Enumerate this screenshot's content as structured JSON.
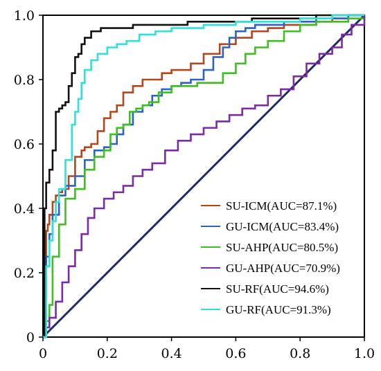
{
  "chart_data": {
    "type": "line",
    "title": "",
    "xlabel": "",
    "ylabel": "",
    "xlim": [
      0,
      1
    ],
    "ylim": [
      0,
      1
    ],
    "x_ticks": [
      0,
      0.2,
      0.4,
      0.6,
      0.8,
      1.0
    ],
    "y_ticks": [
      0,
      0.2,
      0.4,
      0.6,
      0.8,
      1.0
    ],
    "x_tick_labels": [
      "0",
      "0.2",
      "0.4",
      "0.6",
      "0.8",
      "1.0"
    ],
    "y_tick_labels": [
      "0",
      "0.2",
      "0.4",
      "0.6",
      "0.8",
      "1.0"
    ],
    "grid": false,
    "legend_position": "bottom-right",
    "reference_line": {
      "x": [
        0,
        1
      ],
      "y": [
        0,
        1
      ],
      "color": "#1f2a6b"
    },
    "series": [
      {
        "name": "SU-ICM(AUC=87.1%)",
        "color": "#b5451b",
        "x": [
          0,
          0.005,
          0.01,
          0.015,
          0.02,
          0.03,
          0.04,
          0.05,
          0.06,
          0.08,
          0.1,
          0.12,
          0.13,
          0.15,
          0.17,
          0.19,
          0.21,
          0.23,
          0.25,
          0.28,
          0.31,
          0.34,
          0.37,
          0.4,
          0.43,
          0.46,
          0.5,
          0.55,
          0.6,
          0.65,
          0.7,
          0.75,
          0.8,
          0.85,
          0.9,
          0.95,
          1.0
        ],
        "y": [
          0,
          0.15,
          0.33,
          0.35,
          0.38,
          0.42,
          0.44,
          0.45,
          0.46,
          0.5,
          0.56,
          0.58,
          0.59,
          0.6,
          0.64,
          0.68,
          0.7,
          0.72,
          0.76,
          0.78,
          0.8,
          0.8,
          0.82,
          0.83,
          0.83,
          0.85,
          0.88,
          0.91,
          0.93,
          0.95,
          0.96,
          0.97,
          0.97,
          0.98,
          0.99,
          1.0,
          1.0
        ]
      },
      {
        "name": "GU-ICM(AUC=83.4%)",
        "color": "#2a62c9",
        "x": [
          0,
          0.005,
          0.01,
          0.02,
          0.03,
          0.05,
          0.07,
          0.1,
          0.13,
          0.16,
          0.19,
          0.21,
          0.23,
          0.25,
          0.28,
          0.31,
          0.34,
          0.37,
          0.4,
          0.43,
          0.46,
          0.5,
          0.53,
          0.56,
          0.58,
          0.6,
          0.63,
          0.66,
          0.7,
          0.75,
          0.8,
          0.85,
          0.9,
          0.95,
          1.0
        ],
        "y": [
          0,
          0.12,
          0.25,
          0.32,
          0.38,
          0.44,
          0.47,
          0.5,
          0.55,
          0.58,
          0.59,
          0.6,
          0.63,
          0.66,
          0.7,
          0.72,
          0.75,
          0.77,
          0.78,
          0.79,
          0.8,
          0.83,
          0.87,
          0.9,
          0.93,
          0.95,
          0.96,
          0.97,
          0.97,
          0.98,
          0.98,
          0.99,
          0.99,
          1.0,
          1.0
        ]
      },
      {
        "name": "SU-AHP(AUC=80.5%)",
        "color": "#3cbf1f",
        "x": [
          0,
          0.01,
          0.02,
          0.03,
          0.05,
          0.07,
          0.1,
          0.13,
          0.16,
          0.19,
          0.21,
          0.23,
          0.25,
          0.27,
          0.29,
          0.31,
          0.33,
          0.36,
          0.4,
          0.44,
          0.48,
          0.52,
          0.56,
          0.6,
          0.63,
          0.66,
          0.7,
          0.75,
          0.8,
          0.85,
          0.9,
          0.95,
          1.0
        ],
        "y": [
          0,
          0.05,
          0.1,
          0.25,
          0.35,
          0.43,
          0.46,
          0.52,
          0.56,
          0.58,
          0.63,
          0.65,
          0.66,
          0.7,
          0.71,
          0.72,
          0.73,
          0.76,
          0.78,
          0.78,
          0.79,
          0.79,
          0.82,
          0.85,
          0.88,
          0.9,
          0.92,
          0.95,
          0.97,
          0.98,
          0.98,
          0.99,
          1.0
        ]
      },
      {
        "name": "GU-AHP(AUC=70.9%)",
        "color": "#7b2aa8",
        "x": [
          0,
          0.01,
          0.02,
          0.04,
          0.06,
          0.08,
          0.1,
          0.12,
          0.14,
          0.16,
          0.19,
          0.22,
          0.25,
          0.28,
          0.31,
          0.34,
          0.38,
          0.42,
          0.46,
          0.5,
          0.54,
          0.58,
          0.62,
          0.66,
          0.7,
          0.74,
          0.78,
          0.82,
          0.86,
          0.9,
          0.93,
          0.96,
          1.0
        ],
        "y": [
          0,
          0.03,
          0.06,
          0.11,
          0.17,
          0.22,
          0.27,
          0.32,
          0.37,
          0.4,
          0.43,
          0.45,
          0.47,
          0.5,
          0.52,
          0.54,
          0.58,
          0.61,
          0.63,
          0.65,
          0.67,
          0.69,
          0.71,
          0.72,
          0.75,
          0.77,
          0.81,
          0.85,
          0.88,
          0.9,
          0.94,
          0.97,
          1.0
        ]
      },
      {
        "name": "SU-RF(AUC=94.6%)",
        "color": "#111111",
        "x": [
          0,
          0.005,
          0.01,
          0.02,
          0.03,
          0.04,
          0.05,
          0.06,
          0.07,
          0.08,
          0.09,
          0.1,
          0.11,
          0.12,
          0.13,
          0.15,
          0.18,
          0.22,
          0.28,
          0.35,
          0.45,
          0.55,
          0.65,
          0.75,
          0.85,
          0.95,
          1.0
        ],
        "y": [
          0,
          0.4,
          0.48,
          0.52,
          0.58,
          0.7,
          0.71,
          0.72,
          0.73,
          0.78,
          0.82,
          0.87,
          0.88,
          0.91,
          0.93,
          0.95,
          0.96,
          0.96,
          0.97,
          0.97,
          0.98,
          0.98,
          0.99,
          0.99,
          1.0,
          1.0,
          1.0
        ]
      },
      {
        "name": "GU-RF(AUC=91.3%)",
        "color": "#2de2d8",
        "x": [
          0,
          0.01,
          0.02,
          0.03,
          0.04,
          0.05,
          0.07,
          0.09,
          0.1,
          0.11,
          0.12,
          0.13,
          0.15,
          0.17,
          0.2,
          0.23,
          0.26,
          0.3,
          0.35,
          0.4,
          0.5,
          0.6,
          0.7,
          0.8,
          0.9,
          1.0
        ],
        "y": [
          0,
          0.22,
          0.3,
          0.36,
          0.42,
          0.46,
          0.55,
          0.66,
          0.7,
          0.74,
          0.79,
          0.83,
          0.86,
          0.88,
          0.9,
          0.91,
          0.92,
          0.94,
          0.95,
          0.96,
          0.97,
          0.98,
          0.98,
          0.99,
          1.0,
          1.0
        ]
      }
    ]
  }
}
